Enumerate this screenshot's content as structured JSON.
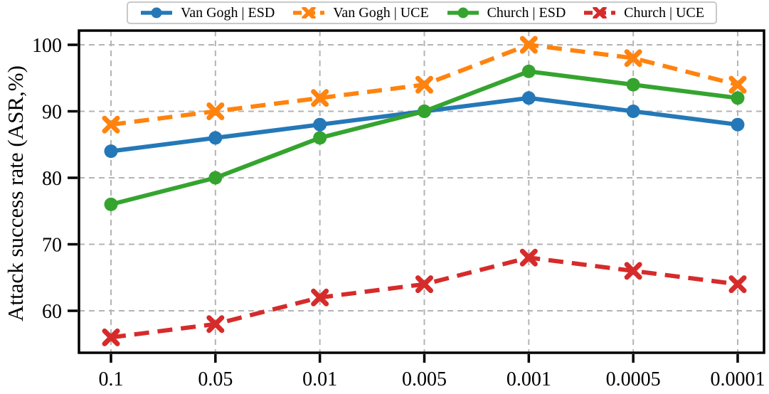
{
  "chart_data": {
    "type": "line",
    "title": "",
    "xlabel": "",
    "ylabel": "Attack success rate (ASR,%)",
    "categories": [
      "0.1",
      "0.05",
      "0.01",
      "0.005",
      "0.001",
      "0.0005",
      "0.0001"
    ],
    "yticks": [
      60,
      70,
      80,
      90,
      100
    ],
    "ylim": [
      53.5,
      102.2
    ],
    "grid": true,
    "grid_color": "#b4b4b4",
    "legend_position": "top",
    "series": [
      {
        "name": "Van Gogh | ESD",
        "color": "#2478b8",
        "style": "solid",
        "marker": "circle",
        "values": [
          84,
          86,
          88,
          90,
          92,
          90,
          88
        ]
      },
      {
        "name": "Van Gogh | UCE",
        "color": "#ff830e",
        "style": "dashed",
        "marker": "x",
        "values": [
          88,
          90,
          92,
          94,
          100,
          98,
          94
        ]
      },
      {
        "name": "Church | ESD",
        "color": "#35a42f",
        "style": "solid",
        "marker": "circle",
        "values": [
          76,
          80,
          86,
          90,
          96,
          94,
          92
        ]
      },
      {
        "name": "Church | UCE",
        "color": "#d62b2b",
        "style": "dashed",
        "marker": "x",
        "values": [
          56,
          58,
          62,
          64,
          68,
          66,
          64
        ]
      }
    ]
  }
}
